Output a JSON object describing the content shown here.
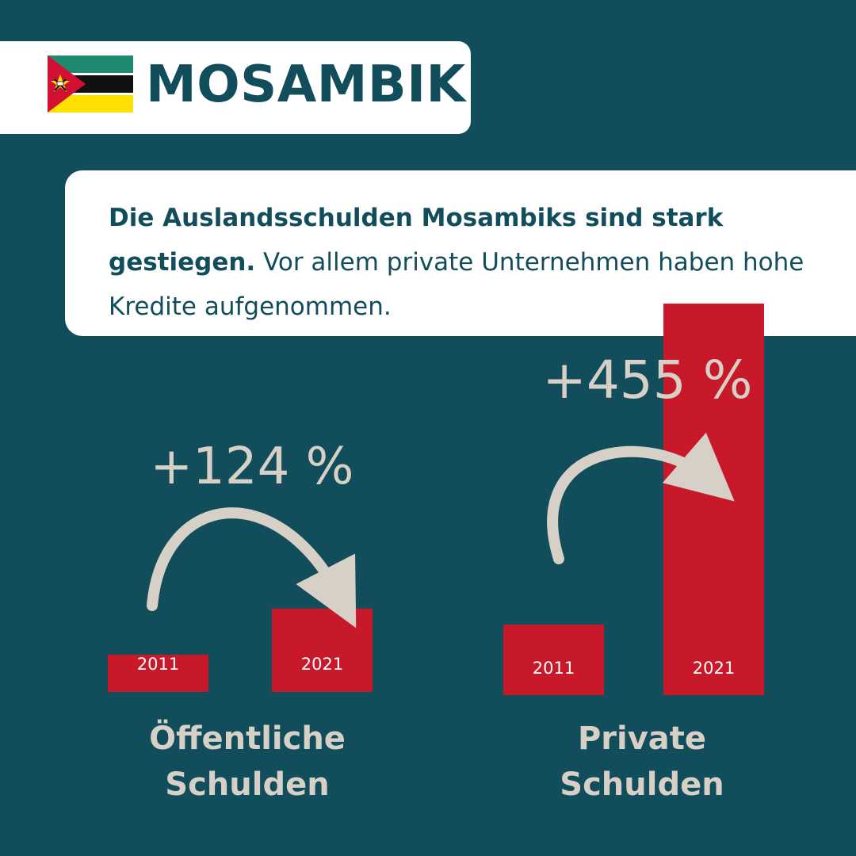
{
  "header": {
    "title": "MOSAMBIK",
    "flag_icon": "mozambique-flag-icon"
  },
  "intro": {
    "bold": "Die Auslandsschulden Mosambiks sind stark gestiegen.",
    "regular": " Vor allem private Unternehmen haben hohe Kredite aufgenommen."
  },
  "colors": {
    "background": "#124d5c",
    "card": "#ffffff",
    "bar": "#c8192a",
    "accent_text": "#d6d0c7"
  },
  "chart_data": [
    {
      "type": "bar",
      "title": "Öffentliche Schulden",
      "categories": [
        "2011",
        "2021"
      ],
      "values": [
        1.0,
        2.24
      ],
      "change_label": "+124 %"
    },
    {
      "type": "bar",
      "title": "Private Schulden",
      "categories": [
        "2011",
        "2021"
      ],
      "values": [
        1.0,
        5.55
      ],
      "change_label": "+455 %"
    }
  ],
  "group_labels": {
    "public": "Öffentliche\nSchulden",
    "private": "Private\nSchulden"
  }
}
